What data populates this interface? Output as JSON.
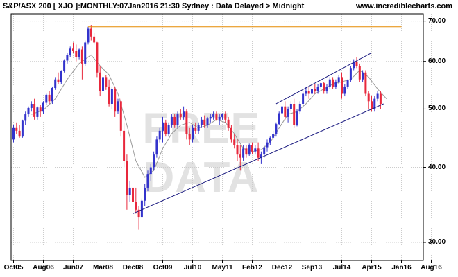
{
  "header": {
    "left": "S&P/ASX 200 [ XJO ]:MONTHLY:07Jan2016 21:30 Sydney : Data Delayed > Midnight",
    "right": "www.incrediblecharts.com"
  },
  "watermark": "FREE DATA",
  "colors": {
    "up": "#3333cc",
    "down": "#e8283c",
    "ma": "#999999",
    "resistance": "#e68a00",
    "trendline": "#1a1a80",
    "grid": "#cccccc"
  },
  "chart_data": {
    "type": "candlestick",
    "scale": "log",
    "ylim": [
      28.0,
      72.0
    ],
    "y_ticks": [
      {
        "value": 30,
        "label": "30.00"
      },
      {
        "value": 40,
        "label": "40.00"
      },
      {
        "value": 50,
        "label": "50.00"
      },
      {
        "value": 60,
        "label": "60.00"
      },
      {
        "value": 70,
        "label": "70.00"
      }
    ],
    "x_ticks": [
      "Oct05",
      "Aug06",
      "Jun07",
      "Mar08",
      "Dec08",
      "Oct09",
      "Jul10",
      "May11",
      "Feb12",
      "Dec12",
      "Sep13",
      "Jul14",
      "Apr15",
      "Jan16",
      "Aug16"
    ],
    "candles_start": "Oct05",
    "candles": [
      [
        44.5,
        47.0,
        44.0,
        46.5
      ],
      [
        46.5,
        47.5,
        45.5,
        46.0
      ],
      [
        46.0,
        47.0,
        44.8,
        45.0
      ],
      [
        45.0,
        48.0,
        44.8,
        47.8
      ],
      [
        47.8,
        49.5,
        47.0,
        49.0
      ],
      [
        49.0,
        50.5,
        48.5,
        50.2
      ],
      [
        50.2,
        51.5,
        49.5,
        51.0
      ],
      [
        51.0,
        52.0,
        48.0,
        48.5
      ],
      [
        48.5,
        50.5,
        48.0,
        50.3
      ],
      [
        50.3,
        50.8,
        48.5,
        49.5
      ],
      [
        49.5,
        51.5,
        49.0,
        51.2
      ],
      [
        51.2,
        53.0,
        50.8,
        52.8
      ],
      [
        52.8,
        53.5,
        51.0,
        51.5
      ],
      [
        51.5,
        54.5,
        51.0,
        54.2
      ],
      [
        54.2,
        56.5,
        53.8,
        56.0
      ],
      [
        56.0,
        57.5,
        55.0,
        55.5
      ],
      [
        55.5,
        58.0,
        55.0,
        57.8
      ],
      [
        57.8,
        60.5,
        57.5,
        60.2
      ],
      [
        60.2,
        62.0,
        59.5,
        61.5
      ],
      [
        61.5,
        63.5,
        61.0,
        63.0
      ],
      [
        63.0,
        64.5,
        62.0,
        62.5
      ],
      [
        62.5,
        64.0,
        60.0,
        61.0
      ],
      [
        61.0,
        63.0,
        60.5,
        62.8
      ],
      [
        62.8,
        63.5,
        56.0,
        59.5
      ],
      [
        59.5,
        65.0,
        59.0,
        64.5
      ],
      [
        64.5,
        68.5,
        64.0,
        68.0
      ],
      [
        68.0,
        69.0,
        65.0,
        66.0
      ],
      [
        66.0,
        67.0,
        64.0,
        64.5
      ],
      [
        64.5,
        64.8,
        56.5,
        57.5
      ],
      [
        57.5,
        59.0,
        52.5,
        53.5
      ],
      [
        53.5,
        57.0,
        53.0,
        56.5
      ],
      [
        56.5,
        57.0,
        53.8,
        54.5
      ],
      [
        54.5,
        56.0,
        50.5,
        51.0
      ],
      [
        51.0,
        54.5,
        50.0,
        54.0
      ],
      [
        54.0,
        54.5,
        48.5,
        49.5
      ],
      [
        49.5,
        52.0,
        49.0,
        51.5
      ],
      [
        51.5,
        52.0,
        45.0,
        46.0
      ],
      [
        46.0,
        47.5,
        40.0,
        41.0
      ],
      [
        41.0,
        42.0,
        34.0,
        36.0
      ],
      [
        36.0,
        38.0,
        35.0,
        37.0
      ],
      [
        37.0,
        37.5,
        34.0,
        35.0
      ],
      [
        35.0,
        37.0,
        33.5,
        34.0
      ],
      [
        34.0,
        34.5,
        31.5,
        33.0
      ],
      [
        33.0,
        35.5,
        33.0,
        35.2
      ],
      [
        35.2,
        37.5,
        34.5,
        37.0
      ],
      [
        37.0,
        39.5,
        36.5,
        39.0
      ],
      [
        39.0,
        40.5,
        38.0,
        40.0
      ],
      [
        40.0,
        42.5,
        39.5,
        42.0
      ],
      [
        42.0,
        45.0,
        41.5,
        44.5
      ],
      [
        44.5,
        46.5,
        44.0,
        46.0
      ],
      [
        46.0,
        48.5,
        44.0,
        47.5
      ],
      [
        47.5,
        48.0,
        45.0,
        45.5
      ],
      [
        45.5,
        47.5,
        45.0,
        47.0
      ],
      [
        47.0,
        49.0,
        46.5,
        48.5
      ],
      [
        48.5,
        49.0,
        46.5,
        47.0
      ],
      [
        47.0,
        49.5,
        46.5,
        49.0
      ],
      [
        49.0,
        50.0,
        48.0,
        48.5
      ],
      [
        48.5,
        50.5,
        48.0,
        49.5
      ],
      [
        49.5,
        50.0,
        44.5,
        45.5
      ],
      [
        45.5,
        46.5,
        43.5,
        44.5
      ],
      [
        44.5,
        47.0,
        44.0,
        46.5
      ],
      [
        46.5,
        47.5,
        45.5,
        46.0
      ],
      [
        46.0,
        47.5,
        45.5,
        47.0
      ],
      [
        47.0,
        48.5,
        46.5,
        48.0
      ],
      [
        48.0,
        48.8,
        46.5,
        47.0
      ],
      [
        47.0,
        48.5,
        46.5,
        48.2
      ],
      [
        48.2,
        49.0,
        47.5,
        48.5
      ],
      [
        48.5,
        49.5,
        48.0,
        49.0
      ],
      [
        49.0,
        49.5,
        47.8,
        48.0
      ],
      [
        48.0,
        49.0,
        47.0,
        48.5
      ],
      [
        48.5,
        49.2,
        48.0,
        49.0
      ],
      [
        49.0,
        49.5,
        47.5,
        48.0
      ],
      [
        48.0,
        48.5,
        46.0,
        46.5
      ],
      [
        46.5,
        47.0,
        44.0,
        44.5
      ],
      [
        44.5,
        45.5,
        43.0,
        43.5
      ],
      [
        43.5,
        44.5,
        41.0,
        42.0
      ],
      [
        42.0,
        43.5,
        39.5,
        41.5
      ],
      [
        41.5,
        43.5,
        41.0,
        43.0
      ],
      [
        43.0,
        43.5,
        41.5,
        42.0
      ],
      [
        42.0,
        43.8,
        41.8,
        43.5
      ],
      [
        43.5,
        44.0,
        42.0,
        42.5
      ],
      [
        42.5,
        43.5,
        42.0,
        43.0
      ],
      [
        43.0,
        44.0,
        41.0,
        41.5
      ],
      [
        41.5,
        42.5,
        40.5,
        42.0
      ],
      [
        42.0,
        43.5,
        41.5,
        43.2
      ],
      [
        43.2,
        44.5,
        42.5,
        44.0
      ],
      [
        44.0,
        45.0,
        43.5,
        44.8
      ],
      [
        44.8,
        46.0,
        44.5,
        45.5
      ],
      [
        45.5,
        47.5,
        45.0,
        47.2
      ],
      [
        47.2,
        49.5,
        47.0,
        49.2
      ],
      [
        49.2,
        51.0,
        49.0,
        50.5
      ],
      [
        50.5,
        51.5,
        48.0,
        48.5
      ],
      [
        48.5,
        50.5,
        47.5,
        50.0
      ],
      [
        50.0,
        51.5,
        49.5,
        51.0
      ],
      [
        51.0,
        52.0,
        46.5,
        47.0
      ],
      [
        47.0,
        50.0,
        46.8,
        49.5
      ],
      [
        49.5,
        51.5,
        49.0,
        51.0
      ],
      [
        51.0,
        53.5,
        50.5,
        53.0
      ],
      [
        53.0,
        54.5,
        52.5,
        53.5
      ],
      [
        53.5,
        54.5,
        52.0,
        53.0
      ],
      [
        53.0,
        54.5,
        52.5,
        54.0
      ],
      [
        54.0,
        55.0,
        53.0,
        53.5
      ],
      [
        53.5,
        55.0,
        53.0,
        54.5
      ],
      [
        54.5,
        55.5,
        54.0,
        55.2
      ],
      [
        55.2,
        55.5,
        53.0,
        53.5
      ],
      [
        53.5,
        55.0,
        53.0,
        54.5
      ],
      [
        54.5,
        56.5,
        54.0,
        56.0
      ],
      [
        56.0,
        56.5,
        54.0,
        54.5
      ],
      [
        54.5,
        56.0,
        54.0,
        55.5
      ],
      [
        55.5,
        57.0,
        55.0,
        56.5
      ],
      [
        56.5,
        57.5,
        52.0,
        53.0
      ],
      [
        53.0,
        55.0,
        52.5,
        54.5
      ],
      [
        54.5,
        56.0,
        54.0,
        55.8
      ],
      [
        55.8,
        59.0,
        55.5,
        58.5
      ],
      [
        58.5,
        60.5,
        58.0,
        60.0
      ],
      [
        60.0,
        61.0,
        58.5,
        59.0
      ],
      [
        59.0,
        59.5,
        55.5,
        56.0
      ],
      [
        56.0,
        58.0,
        55.5,
        57.5
      ],
      [
        57.5,
        58.0,
        52.5,
        53.0
      ],
      [
        53.0,
        53.5,
        50.0,
        51.5
      ],
      [
        51.5,
        52.5,
        49.5,
        50.0
      ],
      [
        50.0,
        52.5,
        49.5,
        52.0
      ],
      [
        52.0,
        53.5,
        51.5,
        53.0
      ],
      [
        53.0,
        53.5,
        50.0,
        51.0
      ]
    ],
    "moving_average": [
      [
        6,
        49.0
      ],
      [
        10,
        49.8
      ],
      [
        14,
        52.0
      ],
      [
        18,
        56.0
      ],
      [
        22,
        59.5
      ],
      [
        26,
        61.5
      ],
      [
        29,
        59.0
      ],
      [
        32,
        57.0
      ],
      [
        35,
        53.0
      ],
      [
        38,
        47.0
      ],
      [
        41,
        41.0
      ],
      [
        44,
        38.5
      ],
      [
        47,
        39.5
      ],
      [
        50,
        43.0
      ],
      [
        53,
        45.5
      ],
      [
        56,
        47.0
      ],
      [
        59,
        47.5
      ],
      [
        62,
        46.5
      ],
      [
        65,
        47.0
      ],
      [
        68,
        48.0
      ],
      [
        71,
        47.5
      ],
      [
        74,
        45.5
      ],
      [
        77,
        43.0
      ],
      [
        80,
        42.5
      ],
      [
        83,
        42.8
      ],
      [
        86,
        44.0
      ],
      [
        89,
        46.5
      ],
      [
        92,
        49.0
      ],
      [
        95,
        49.5
      ],
      [
        98,
        51.0
      ],
      [
        101,
        53.0
      ],
      [
        104,
        54.0
      ],
      [
        107,
        55.0
      ],
      [
        110,
        55.5
      ],
      [
        113,
        56.0
      ],
      [
        116,
        58.0
      ],
      [
        119,
        56.5
      ],
      [
        122,
        54.0
      ],
      [
        125,
        52.0
      ]
    ],
    "lines": [
      {
        "kind": "resistance",
        "from": [
          25,
          68.5
        ],
        "to": [
          130,
          68.5
        ]
      },
      {
        "kind": "support",
        "from": [
          49,
          50.0
        ],
        "to": [
          130,
          50.0
        ]
      },
      {
        "kind": "trend-lower",
        "from": [
          40,
          33.5
        ],
        "to": [
          124,
          51.0
        ]
      },
      {
        "kind": "trend-upper",
        "from": [
          88,
          51.0
        ],
        "to": [
          120,
          62.0
        ]
      }
    ]
  }
}
